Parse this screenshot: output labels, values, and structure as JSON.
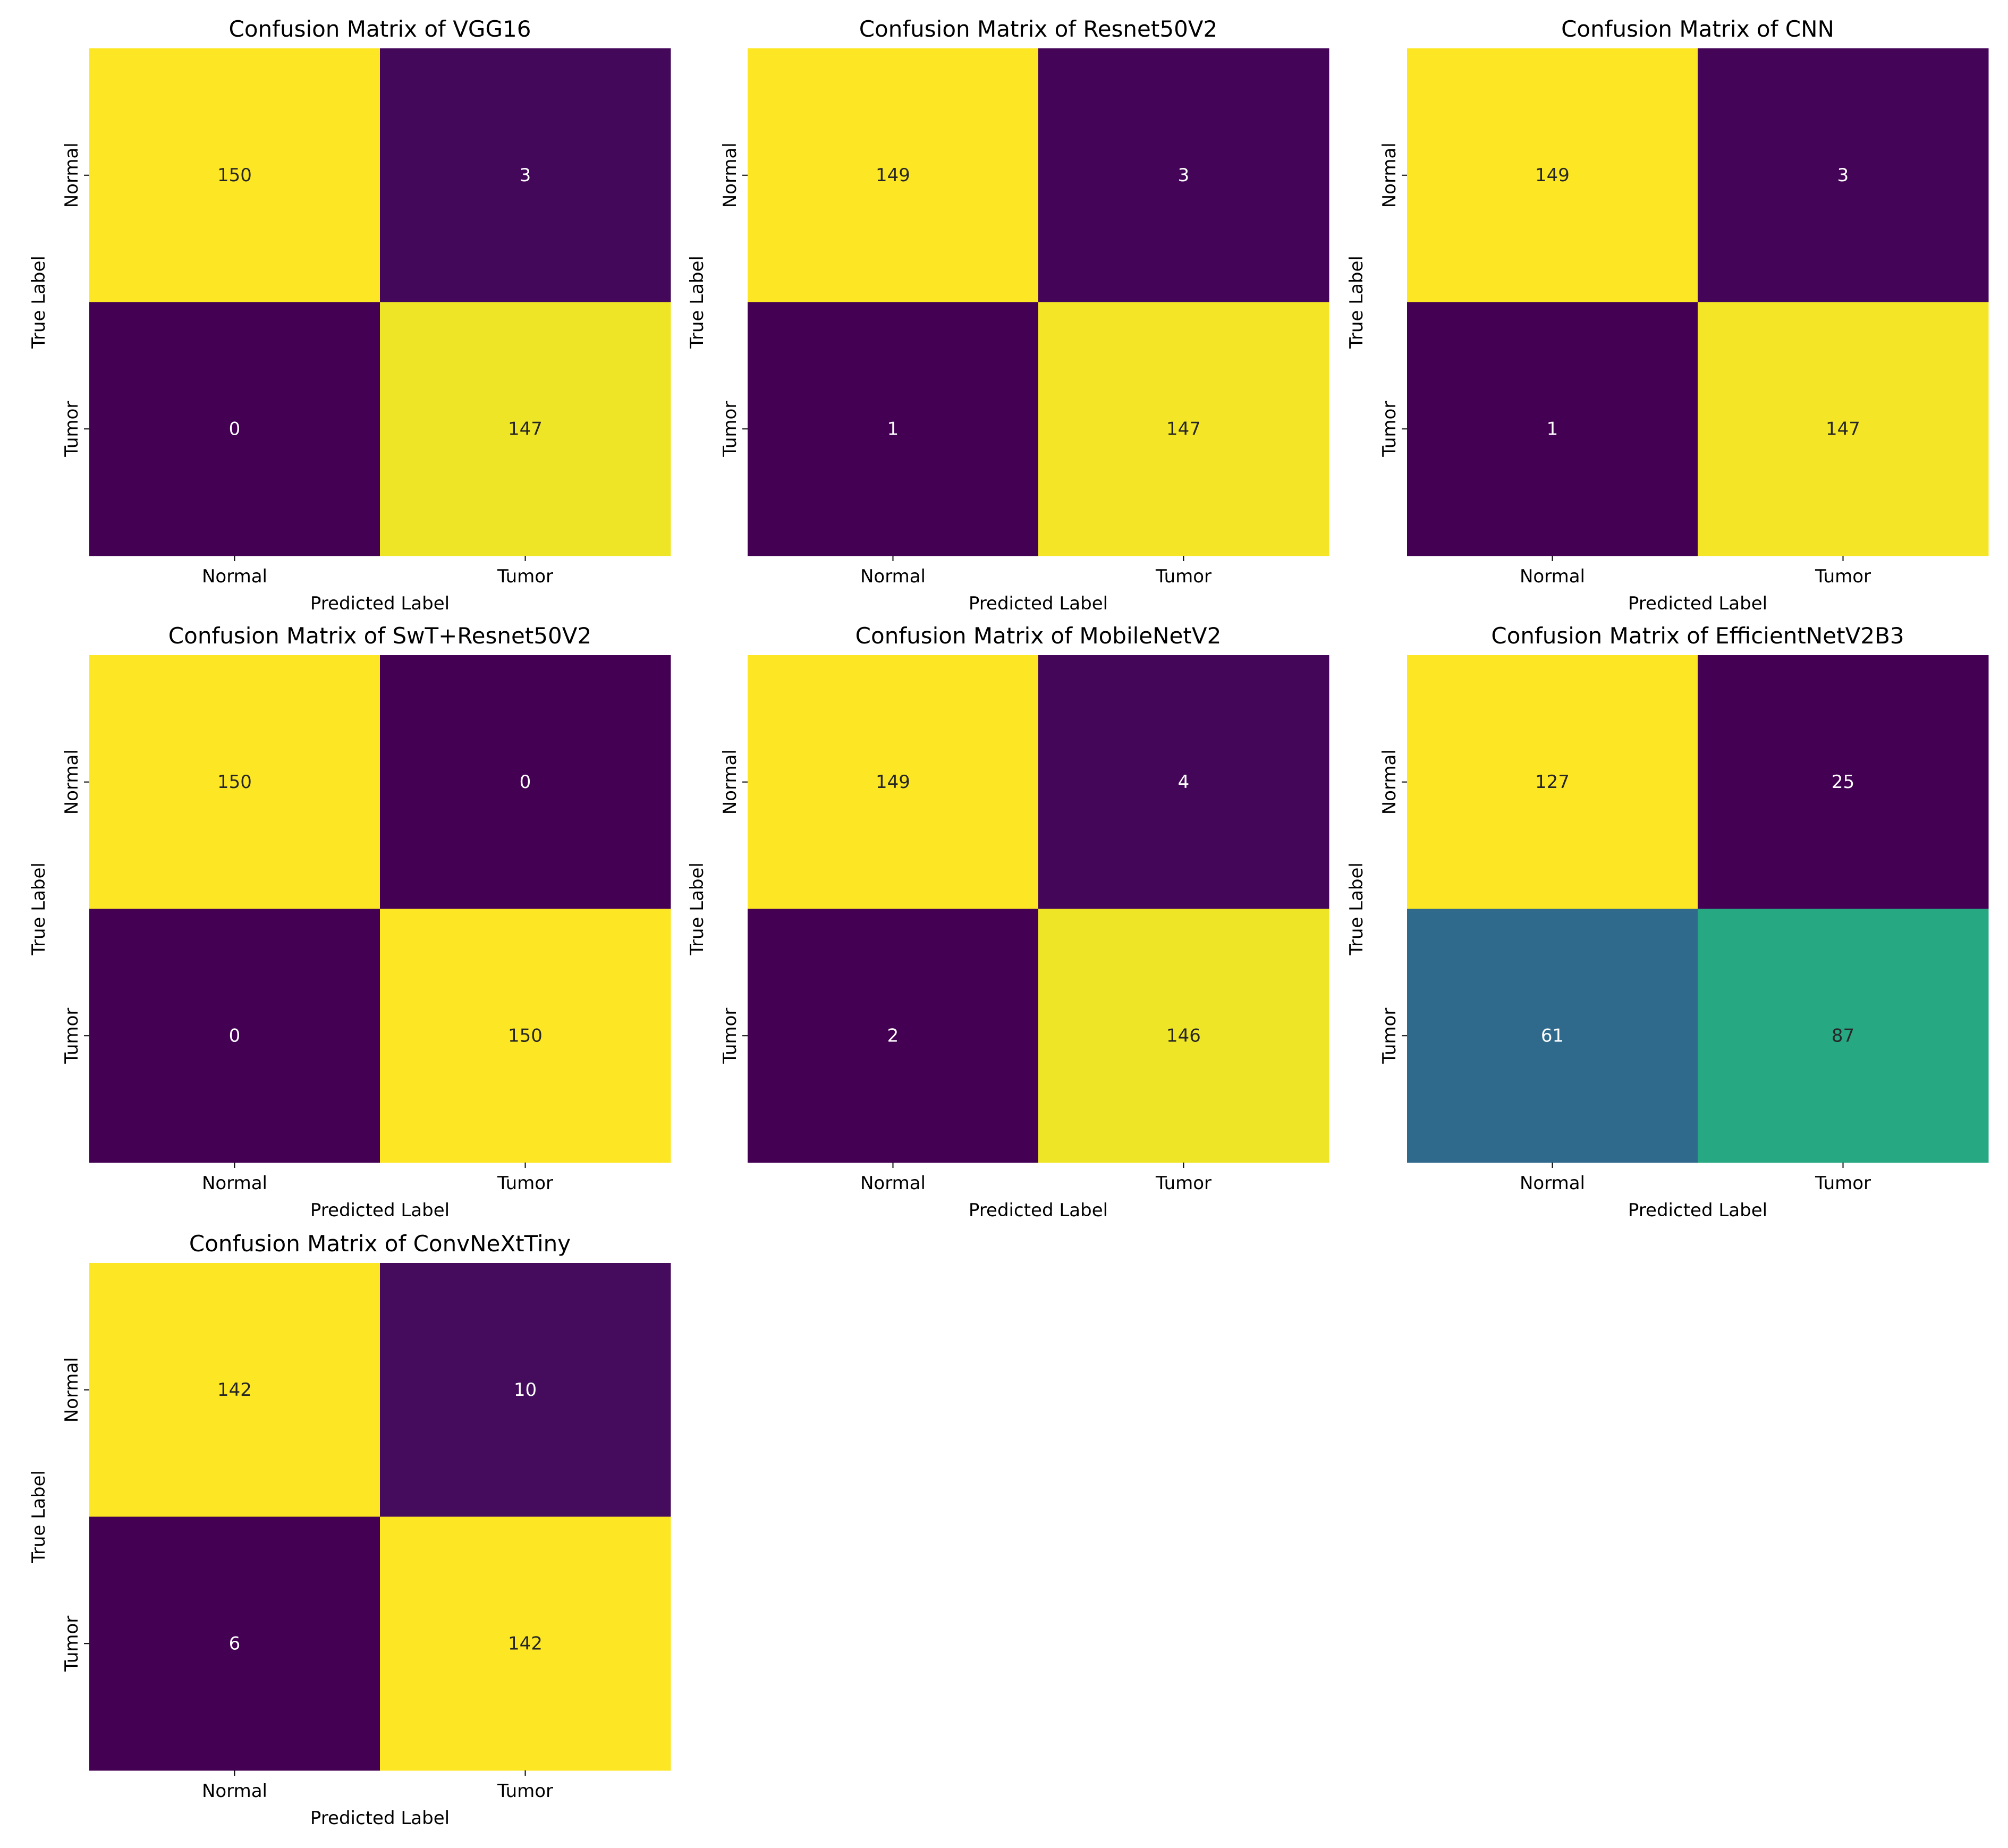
{
  "chart_data": [
    {
      "type": "heatmap",
      "title": "Confusion Matrix of VGG16",
      "xlabel": "Predicted Label",
      "ylabel": "True Label",
      "x_categories": [
        "Normal",
        "Tumor"
      ],
      "y_categories": [
        "Normal",
        "Tumor"
      ],
      "values": [
        [
          150,
          3
        ],
        [
          0,
          147
        ]
      ],
      "colormap": "viridis",
      "colorbar": false
    },
    {
      "type": "heatmap",
      "title": "Confusion Matrix of Resnet50V2",
      "xlabel": "Predicted Label",
      "ylabel": "True Label",
      "x_categories": [
        "Normal",
        "Tumor"
      ],
      "y_categories": [
        "Normal",
        "Tumor"
      ],
      "values": [
        [
          149,
          3
        ],
        [
          1,
          147
        ]
      ],
      "colormap": "viridis",
      "colorbar": false
    },
    {
      "type": "heatmap",
      "title": "Confusion Matrix of CNN",
      "xlabel": "Predicted Label",
      "ylabel": "True Label",
      "x_categories": [
        "Normal",
        "Tumor"
      ],
      "y_categories": [
        "Normal",
        "Tumor"
      ],
      "values": [
        [
          149,
          3
        ],
        [
          1,
          147
        ]
      ],
      "colormap": "viridis",
      "colorbar": false
    },
    {
      "type": "heatmap",
      "title": "Confusion Matrix of SwT+Resnet50V2",
      "xlabel": "Predicted Label",
      "ylabel": "True Label",
      "x_categories": [
        "Normal",
        "Tumor"
      ],
      "y_categories": [
        "Normal",
        "Tumor"
      ],
      "values": [
        [
          150,
          0
        ],
        [
          0,
          150
        ]
      ],
      "colormap": "viridis",
      "colorbar": false
    },
    {
      "type": "heatmap",
      "title": "Confusion Matrix of MobileNetV2",
      "xlabel": "Predicted Label",
      "ylabel": "True Label",
      "x_categories": [
        "Normal",
        "Tumor"
      ],
      "y_categories": [
        "Normal",
        "Tumor"
      ],
      "values": [
        [
          149,
          4
        ],
        [
          2,
          146
        ]
      ],
      "colormap": "viridis",
      "colorbar": false
    },
    {
      "type": "heatmap",
      "title": "Confusion Matrix of EfficientNetV2B3",
      "xlabel": "Predicted Label",
      "ylabel": "True Label",
      "x_categories": [
        "Normal",
        "Tumor"
      ],
      "y_categories": [
        "Normal",
        "Tumor"
      ],
      "values": [
        [
          127,
          25
        ],
        [
          61,
          87
        ]
      ],
      "colormap": "viridis",
      "colorbar": false
    },
    {
      "type": "heatmap",
      "title": "Confusion Matrix of ConvNeXtTiny",
      "xlabel": "Predicted Label",
      "ylabel": "True Label",
      "x_categories": [
        "Normal",
        "Tumor"
      ],
      "y_categories": [
        "Normal",
        "Tumor"
      ],
      "values": [
        [
          142,
          10
        ],
        [
          6,
          142
        ]
      ],
      "colormap": "viridis",
      "colorbar": false
    }
  ]
}
